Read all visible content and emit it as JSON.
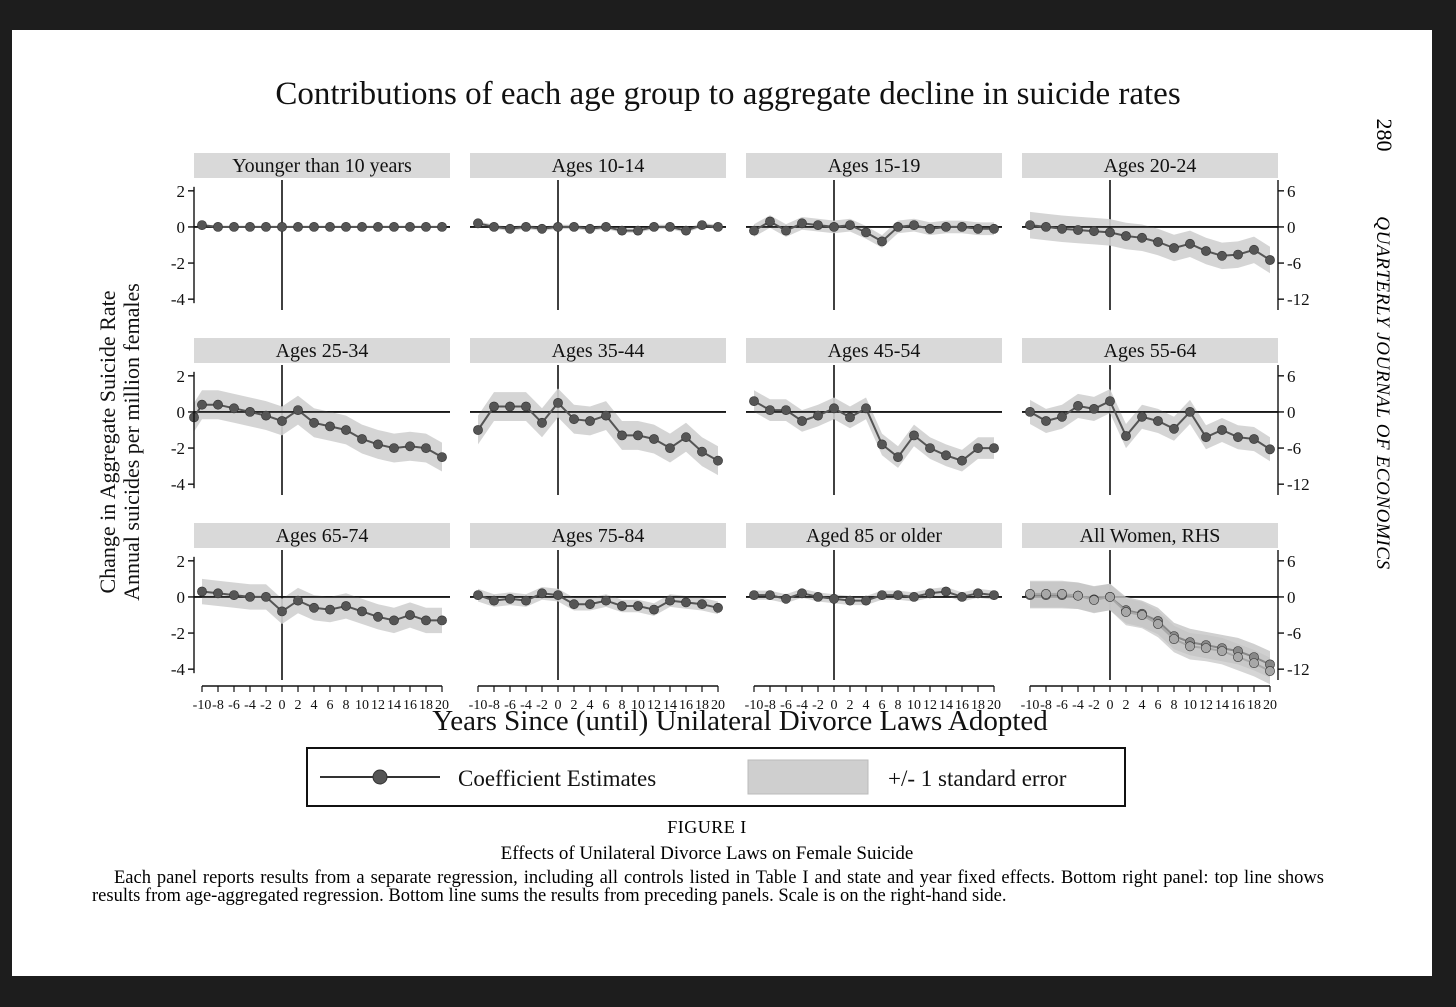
{
  "page_number": "280",
  "journal": "QUARTERLY JOURNAL OF ECONOMICS",
  "figure": {
    "label": "FIGURE I",
    "title": "Effects of Unilateral Divorce Laws on Female Suicide",
    "caption": "Each panel reports results from a separate regression, including all controls listed in Table I and state and year fixed effects. Bottom right panel: top line shows results from age-aggregated regression. Bottom line sums the results from preceding panels. Scale is on the right-hand side."
  },
  "chart_data": {
    "type": "line",
    "title": "Contributions of each age group to aggregate decline in suicide rates",
    "xlabel": "Years Since (until) Unilateral Divorce Laws Adopted",
    "ylabel_line1": "Change in Aggregate Suicide Rate",
    "ylabel_line2": "Annual suicides per million females",
    "x": [
      -10,
      -8,
      -6,
      -4,
      -2,
      0,
      2,
      4,
      6,
      8,
      10,
      12,
      14,
      16,
      18,
      20
    ],
    "x_tick_labels": [
      "-10",
      "-8",
      "-6",
      "-4",
      "-2",
      "0",
      "2",
      "4",
      "6",
      "8",
      "10",
      "12",
      "14",
      "16",
      "18",
      "20"
    ],
    "xlim": [
      -11,
      21
    ],
    "left_ylim": [
      -4.6,
      2.6
    ],
    "left_yticks": [
      2,
      0,
      -2,
      -4
    ],
    "left_ytick_labels": [
      "2",
      "0",
      "-2",
      "-4"
    ],
    "right_ylim": [
      -13.8,
      7.8
    ],
    "right_yticks": [
      6,
      0,
      -6,
      -12
    ],
    "right_ytick_labels": [
      "6",
      "0",
      "-6",
      "-12"
    ],
    "legend": {
      "line_label": "Coefficient Estimates",
      "band_label": "+/- 1 standard error",
      "position": "bottom-center"
    },
    "panels": [
      {
        "name": "Younger than 10 years",
        "scale": "left",
        "values": [
          0.1,
          0.0,
          0.0,
          0.0,
          0.0,
          0.0,
          0.0,
          0.0,
          0.0,
          0.0,
          0.0,
          0.0,
          0.0,
          0.0,
          0.0,
          0.0
        ],
        "se": 0.05
      },
      {
        "name": "Ages 10-14",
        "scale": "left",
        "values": [
          0.2,
          0.0,
          -0.1,
          0.0,
          -0.1,
          0.0,
          0.0,
          -0.1,
          0.0,
          -0.2,
          -0.2,
          0.0,
          0.0,
          -0.2,
          0.1,
          0.0
        ],
        "se": 0.12
      },
      {
        "name": "Ages 15-19",
        "scale": "left",
        "values": [
          -0.2,
          0.3,
          -0.2,
          0.2,
          0.1,
          0.0,
          0.1,
          -0.3,
          -0.8,
          0.0,
          0.1,
          -0.1,
          0.0,
          0.0,
          -0.1,
          -0.1
        ],
        "se": 0.35
      },
      {
        "name": "Ages 20-24",
        "scale": "right",
        "values": [
          0.3,
          0.0,
          -0.3,
          -0.5,
          -0.7,
          -0.9,
          -1.5,
          -1.8,
          -2.5,
          -3.5,
          -2.8,
          -4.0,
          -4.8,
          -4.6,
          -3.8,
          -5.5
        ],
        "se": 2.2
      },
      {
        "name": "Ages 25-34",
        "scale": "left",
        "values": [
          -0.3,
          0.4,
          0.4,
          0.2,
          0.0,
          -0.2,
          -0.5,
          0.1,
          -0.6,
          -0.8,
          -1.0,
          -1.5,
          -1.8,
          -2.0,
          -1.9,
          -2.0,
          -2.5
        ],
        "se": 0.8,
        "x": [
          -11,
          -10,
          -8,
          -6,
          -4,
          -2,
          0,
          2,
          4,
          6,
          8,
          10,
          12,
          14,
          16,
          18,
          20
        ]
      },
      {
        "name": "Ages 35-44",
        "scale": "left",
        "values": [
          -1.0,
          0.3,
          0.3,
          0.3,
          -0.6,
          0.5,
          -0.4,
          -0.5,
          -0.2,
          -1.3,
          -1.3,
          -1.5,
          -2.0,
          -1.4,
          -2.2,
          -2.7
        ],
        "se": 0.8
      },
      {
        "name": "Ages 45-54",
        "scale": "left",
        "values": [
          0.6,
          0.1,
          0.1,
          -0.5,
          -0.2,
          0.2,
          -0.3,
          0.2,
          -1.8,
          -2.5,
          -1.3,
          -2.0,
          -2.4,
          -2.7,
          -2.0,
          -2.0
        ],
        "se": 0.6
      },
      {
        "name": "Ages 55-64",
        "scale": "right",
        "values": [
          0.0,
          -1.5,
          -0.8,
          1.0,
          0.5,
          1.8,
          -4.0,
          -0.8,
          -1.5,
          -2.8,
          0.0,
          -4.2,
          -3.0,
          -4.2,
          -4.5,
          -6.2
        ],
        "se": 2.0
      },
      {
        "name": "Ages 65-74",
        "scale": "left",
        "values": [
          0.3,
          0.2,
          0.1,
          0.0,
          0.0,
          -0.8,
          -0.2,
          -0.6,
          -0.7,
          -0.5,
          -0.8,
          -1.1,
          -1.3,
          -1.0,
          -1.3,
          -1.3
        ],
        "se": 0.7
      },
      {
        "name": "Ages 75-84",
        "scale": "left",
        "values": [
          0.1,
          -0.2,
          -0.1,
          -0.2,
          0.2,
          0.1,
          -0.4,
          -0.4,
          -0.2,
          -0.5,
          -0.5,
          -0.7,
          -0.2,
          -0.3,
          -0.4,
          -0.6
        ],
        "se": 0.35
      },
      {
        "name": "Aged 85 or older",
        "scale": "left",
        "values": [
          0.1,
          0.1,
          -0.1,
          0.2,
          0.0,
          -0.1,
          -0.2,
          -0.2,
          0.1,
          0.1,
          0.0,
          0.2,
          0.3,
          0.0,
          0.2,
          0.1
        ],
        "se": 0.25
      },
      {
        "name": "All Women, RHS",
        "scale": "right",
        "values": [
          0.5,
          0.5,
          0.5,
          0.2,
          -0.5,
          0.0,
          -2.5,
          -3.0,
          -4.5,
          -7.0,
          -8.2,
          -8.5,
          -9.0,
          -10.0,
          -11.0,
          -12.3
        ],
        "values2": [
          0.3,
          0.3,
          0.3,
          0.2,
          -0.4,
          0.0,
          -2.2,
          -2.8,
          -4.0,
          -6.5,
          -7.5,
          -8.0,
          -8.5,
          -9.0,
          -10.0,
          -11.2
        ],
        "se": 2.2
      }
    ]
  }
}
